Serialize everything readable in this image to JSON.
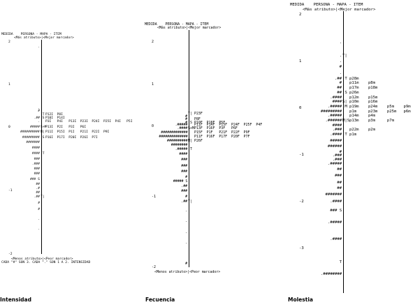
{
  "chart_data": [
    {
      "type": "table",
      "caption": "Intensidad",
      "header": "MEDIDA    PERSONA - MAPA - ITEM",
      "subheader": "<Más atributo>|<Mejor marcador>",
      "footer": "<Menos atributo>|<Peor marcador>",
      "note": "CADA \"#\" SON 3. CADA \".\" SON 1 A 2. INTENSIDAD",
      "ylim": [
        -2,
        2
      ],
      "ticks": [
        "2",
        "1",
        "0",
        "-1",
        "-2"
      ],
      "tick_values": [
        2,
        1,
        0,
        -1,
        -2
      ],
      "rows": [
        {
          "y": 1.88,
          "left": ".",
          "mark": "|",
          "right": ""
        },
        {
          "y": 1.79,
          "left": "",
          "mark": "|",
          "right": ""
        },
        {
          "y": 1.65,
          "left": "",
          "mark": "|",
          "right": ""
        },
        {
          "y": 1.55,
          "left": "",
          "mark": "|",
          "right": ""
        },
        {
          "y": 1.42,
          "left": "",
          "mark": "|",
          "right": ""
        },
        {
          "y": 1.25,
          "left": "",
          "mark": "|",
          "right": ""
        },
        {
          "y": 1.0,
          "left": "",
          "mark": "|",
          "right": ""
        },
        {
          "y": 0.8,
          "left": "",
          "mark": "|",
          "right": ""
        },
        {
          "y": 0.6,
          "left": "",
          "mark": "|",
          "right": ""
        },
        {
          "y": 0.45,
          "left": ".",
          "mark": "|",
          "right": ""
        },
        {
          "y": 0.37,
          "left": "#",
          "mark": "|",
          "right": ""
        },
        {
          "y": 0.3,
          "left": "",
          "mark": "|T",
          "right": "P12I  P8I"
        },
        {
          "y": 0.22,
          "left": ".##",
          "mark": "|S",
          "right": "P10I  P14I"
        },
        {
          "y": 0.13,
          "left": ".",
          "mark": "|",
          "right": "P3I   P4I   P13I  P23I  P24I  P25I  P4I   P5I"
        },
        {
          "y": 0.0,
          "left": "#####",
          "mark": "S+M",
          "right": "P13I  P2I   P3I   P6I"
        },
        {
          "y": -0.08,
          "left": "##########",
          "mark": "M|",
          "right": "P11I  P15I  P1I   P21I  P22I  P9I"
        },
        {
          "y": -0.16,
          "left": "#########",
          "mark": "|S",
          "right": "P16I  P17I  P20I  P26I  P7I"
        },
        {
          "y": -0.24,
          "left": "#######",
          "mark": "|",
          "right": ""
        },
        {
          "y": -0.33,
          "left": "####",
          "mark": "|",
          "right": ""
        },
        {
          "y": -0.42,
          "left": "####",
          "mark": "|T",
          "right": ""
        },
        {
          "y": -0.5,
          "left": "###",
          "mark": "|",
          "right": ""
        },
        {
          "y": -0.58,
          "left": ".###",
          "mark": "|",
          "right": ""
        },
        {
          "y": -0.66,
          "left": "###",
          "mark": "|",
          "right": ""
        },
        {
          "y": -0.74,
          "left": "###",
          "mark": "|",
          "right": ""
        },
        {
          "y": -0.82,
          "left": "### S",
          "mark": "|",
          "right": ""
        },
        {
          "y": -0.9,
          "left": "##",
          "mark": "|",
          "right": ""
        },
        {
          "y": -0.97,
          "left": ".#",
          "mark": "|",
          "right": ""
        },
        {
          "y": -1.03,
          "left": "##",
          "mark": "|",
          "right": ""
        },
        {
          "y": -1.1,
          "left": ".##",
          "mark": "T|",
          "right": ""
        },
        {
          "y": -1.2,
          "left": "#",
          "mark": "|",
          "right": ""
        },
        {
          "y": -1.3,
          "left": "#",
          "mark": "|",
          "right": ""
        },
        {
          "y": -1.45,
          "left": ".",
          "mark": "|",
          "right": ""
        },
        {
          "y": -1.6,
          "left": ".",
          "mark": "|",
          "right": ""
        },
        {
          "y": -1.7,
          "left": "",
          "mark": "|",
          "right": ""
        },
        {
          "y": -1.85,
          "left": "",
          "mark": "|",
          "right": ""
        }
      ]
    },
    {
      "type": "table",
      "caption": "Fecuencia",
      "header": "MEDIDA    PERSONA - MAPA - ITEM",
      "subheader": "<Más atributo>|<Mejor marcador>",
      "footer": "<Menos atributo>|<Peor marcador>",
      "ylim": [
        -2,
        2
      ],
      "ticks": [
        "2",
        "1",
        "0",
        "-1",
        "-2"
      ],
      "tick_values": [
        2,
        1,
        0,
        -1,
        -2
      ],
      "rows": [
        {
          "y": 1.85,
          "left": "",
          "mark": "|",
          "right": ""
        },
        {
          "y": 1.6,
          "left": "",
          "mark": "|",
          "right": ""
        },
        {
          "y": 1.3,
          "left": "",
          "mark": "|",
          "right": ""
        },
        {
          "y": 0.8,
          "left": "",
          "mark": "|",
          "right": ""
        },
        {
          "y": 0.6,
          "left": "",
          "mark": "|",
          "right": ""
        },
        {
          "y": 0.45,
          "left": "",
          "mark": "|",
          "right": ""
        },
        {
          "y": 0.3,
          "left": "",
          "mark": "T|",
          "right": "P23F"
        },
        {
          "y": 0.23,
          "left": "#",
          "mark": "|",
          "right": ""
        },
        {
          "y": 0.16,
          "left": "#",
          "mark": "|",
          "right": "P8F"
        },
        {
          "y": 0.09,
          "left": "#",
          "mark": "|S",
          "right": "P10F  P18F  P5F"
        },
        {
          "y": 0.03,
          "left": ".#####",
          "mark": "|",
          "right": "P11F  P14F  P15F  P24F  P25F  P4F"
        },
        {
          "y": -0.03,
          "left": ".####",
          "mark": "S+M",
          "right": "P13F  P16F  P3F   P6F"
        },
        {
          "y": -0.09,
          "left": "#############",
          "mark": "|",
          "right": "P15F  P1F   P21F  P22F  P9F"
        },
        {
          "y": -0.15,
          "left": "##############",
          "mark": "|",
          "right": "P11F  P16F  P17F  P20F  P7F"
        },
        {
          "y": -0.21,
          "left": "##########",
          "mark": "M|",
          "right": "P26F"
        },
        {
          "y": -0.27,
          "left": "########",
          "mark": "|",
          "right": ""
        },
        {
          "y": -0.33,
          "left": ".#####",
          "mark": "|T",
          "right": ""
        },
        {
          "y": -0.4,
          "left": "####",
          "mark": "|",
          "right": ""
        },
        {
          "y": -0.48,
          "left": "###",
          "mark": "|",
          "right": ""
        },
        {
          "y": -0.56,
          "left": "###",
          "mark": "|",
          "right": ""
        },
        {
          "y": -0.64,
          "left": "###",
          "mark": "|",
          "right": ""
        },
        {
          "y": -0.72,
          "left": "#",
          "mark": "|",
          "right": ""
        },
        {
          "y": -0.78,
          "left": "##### S",
          "mark": "|",
          "right": ""
        },
        {
          "y": -0.85,
          "left": ".##",
          "mark": "|",
          "right": ""
        },
        {
          "y": -0.92,
          "left": "###",
          "mark": "|",
          "right": ""
        },
        {
          "y": -1.0,
          "left": "#",
          "mark": "|",
          "right": ""
        },
        {
          "y": -1.07,
          "left": ".##",
          "mark": "T|",
          "right": ""
        },
        {
          "y": -1.2,
          "left": ".",
          "mark": "|",
          "right": ""
        },
        {
          "y": -1.35,
          "left": ".",
          "mark": "|",
          "right": ""
        },
        {
          "y": -1.5,
          "left": ".",
          "mark": "|",
          "right": ""
        },
        {
          "y": -1.65,
          "left": ".",
          "mark": "|",
          "right": ""
        },
        {
          "y": -1.8,
          "left": "",
          "mark": "|",
          "right": ""
        },
        {
          "y": -1.95,
          "left": "#",
          "mark": "|",
          "right": ""
        }
      ]
    },
    {
      "type": "table",
      "caption": "Molestia",
      "header": "MEDIDA    PERSONA - MAPA - ITEM",
      "subheader": "<Más atributo>|<Mejor marcador>",
      "footer": "",
      "ylim": [
        -4,
        2.3
      ],
      "ticks": [
        "2",
        "1",
        "0",
        "-1",
        "-2",
        "-3"
      ],
      "tick_values": [
        2,
        1,
        0,
        -1,
        -2,
        -3
      ],
      "rows": [
        {
          "y": 2.0,
          "left": "",
          "mark": "|",
          "right": ""
        },
        {
          "y": 1.8,
          "left": "",
          "mark": "|",
          "right": ""
        },
        {
          "y": 1.6,
          "left": "",
          "mark": "|",
          "right": ""
        },
        {
          "y": 1.4,
          "left": ".",
          "mark": "|",
          "right": ""
        },
        {
          "y": 1.25,
          "left": "",
          "mark": "|",
          "right": ""
        },
        {
          "y": 1.12,
          "left": ".",
          "mark": "T|",
          "right": ""
        },
        {
          "y": 1.0,
          "left": ".",
          "mark": "|",
          "right": ""
        },
        {
          "y": 0.88,
          "left": "#",
          "mark": "|",
          "right": ""
        },
        {
          "y": 0.75,
          "left": ".",
          "mark": "|",
          "right": ""
        },
        {
          "y": 0.62,
          "left": ".##",
          "mark": "|T",
          "right": "p28m"
        },
        {
          "y": 0.53,
          "left": "#",
          "mark": "|",
          "right": "p11m    p8m"
        },
        {
          "y": 0.43,
          "left": "##",
          "mark": "|",
          "right": "p17m    p18m"
        },
        {
          "y": 0.33,
          "left": "##",
          "mark": "|S",
          "right": "p26m"
        },
        {
          "y": 0.23,
          "left": ".####",
          "mark": "|",
          "right": "p12m    p15m"
        },
        {
          "y": 0.13,
          "left": "####",
          "mark": "S|",
          "right": "p10m    p16m"
        },
        {
          "y": 0.03,
          "left": ".#####",
          "mark": "|M",
          "right": "p19m    p24m    p5m    p9m"
        },
        {
          "y": -0.07,
          "left": "#########",
          "mark": "|",
          "right": "p1m     p23m    p25m   p6m"
        },
        {
          "y": -0.17,
          "left": ".#####",
          "mark": "|",
          "right": "p14m    p4m"
        },
        {
          "y": -0.27,
          "left": ".######",
          "mark": "M|S",
          "right": "p13m    p3m     p7m"
        },
        {
          "y": -0.37,
          "left": "####",
          "mark": "|",
          "right": ""
        },
        {
          "y": -0.47,
          "left": ".###",
          "mark": "|",
          "right": "p22m    p2m"
        },
        {
          "y": -0.57,
          "left": ".####",
          "mark": "|T",
          "right": "p1m"
        },
        {
          "y": -0.7,
          "left": "#####",
          "mark": "|",
          "right": ""
        },
        {
          "y": -0.82,
          "left": "######",
          "mark": "|",
          "right": ""
        },
        {
          "y": -0.94,
          "left": "#",
          "mark": "|",
          "right": ""
        },
        {
          "y": -1.02,
          "left": ".###",
          "mark": "|",
          "right": ""
        },
        {
          "y": -1.1,
          "left": ".###",
          "mark": "|",
          "right": ""
        },
        {
          "y": -1.2,
          "left": ".#####",
          "mark": "|",
          "right": ""
        },
        {
          "y": -1.32,
          "left": "##",
          "mark": "|",
          "right": ""
        },
        {
          "y": -1.45,
          "left": "###",
          "mark": "|",
          "right": ""
        },
        {
          "y": -1.6,
          "left": "##",
          "mark": "|",
          "right": ""
        },
        {
          "y": -1.72,
          "left": "##",
          "mark": "|",
          "right": ""
        },
        {
          "y": -1.85,
          "left": "#######",
          "mark": "|",
          "right": ""
        },
        {
          "y": -2.0,
          "left": ".####",
          "mark": "|",
          "right": ""
        },
        {
          "y": -2.2,
          "left": "### S",
          "mark": "|",
          "right": ""
        },
        {
          "y": -2.45,
          "left": ".#####",
          "mark": "|",
          "right": ""
        },
        {
          "y": -2.8,
          "left": ".####",
          "mark": "|",
          "right": ""
        },
        {
          "y": -3.3,
          "left": "T",
          "mark": "|",
          "right": ""
        },
        {
          "y": -3.55,
          "left": ".########",
          "mark": "|",
          "right": ""
        },
        {
          "y": -3.9,
          "left": "",
          "mark": "|",
          "right": ""
        }
      ]
    }
  ]
}
